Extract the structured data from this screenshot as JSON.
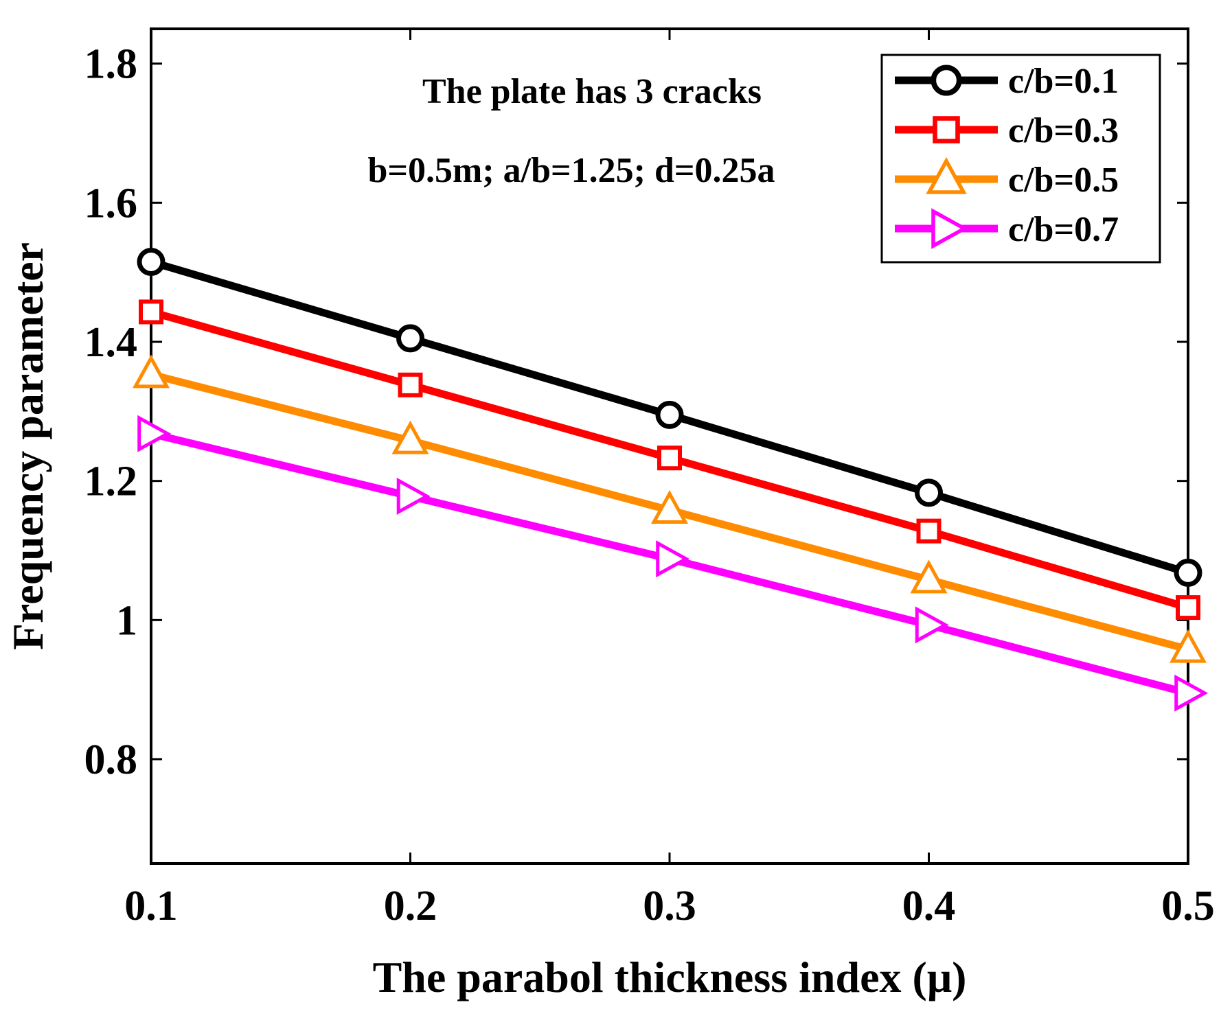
{
  "chart_data": {
    "type": "line",
    "x": [
      0.1,
      0.2,
      0.3,
      0.4,
      0.5
    ],
    "xticks": [
      "0.1",
      "0.2",
      "0.3",
      "0.4",
      "0.5"
    ],
    "yticks": [
      "0.8",
      "1",
      "1.2",
      "1.4",
      "1.6",
      "1.8"
    ],
    "xlim": [
      0.1,
      0.5
    ],
    "ylim": [
      0.65,
      1.85
    ],
    "xlabel": "The parabol thickness index (μ)",
    "ylabel": "Frequency parameter",
    "title": "",
    "annotations": [
      "The plate has 3 cracks",
      "b=0.5m; a/b=1.25; d=0.25a"
    ],
    "grid": false,
    "legend_position": "top-right",
    "series": [
      {
        "name": "c/b=0.1",
        "color": "#000000",
        "marker": "circle",
        "values": [
          1.515,
          1.405,
          1.295,
          1.183,
          1.068
        ]
      },
      {
        "name": "c/b=0.3",
        "color": "#ff0000",
        "marker": "square",
        "values": [
          1.443,
          1.338,
          1.233,
          1.128,
          1.018
        ]
      },
      {
        "name": "c/b=0.5",
        "color": "#ff8c00",
        "marker": "triangle-up",
        "values": [
          1.353,
          1.258,
          1.158,
          1.058,
          0.958
        ]
      },
      {
        "name": "c/b=0.7",
        "color": "#ff00ff",
        "marker": "triangle-right",
        "values": [
          1.268,
          1.178,
          1.088,
          0.993,
          0.895
        ]
      }
    ]
  }
}
